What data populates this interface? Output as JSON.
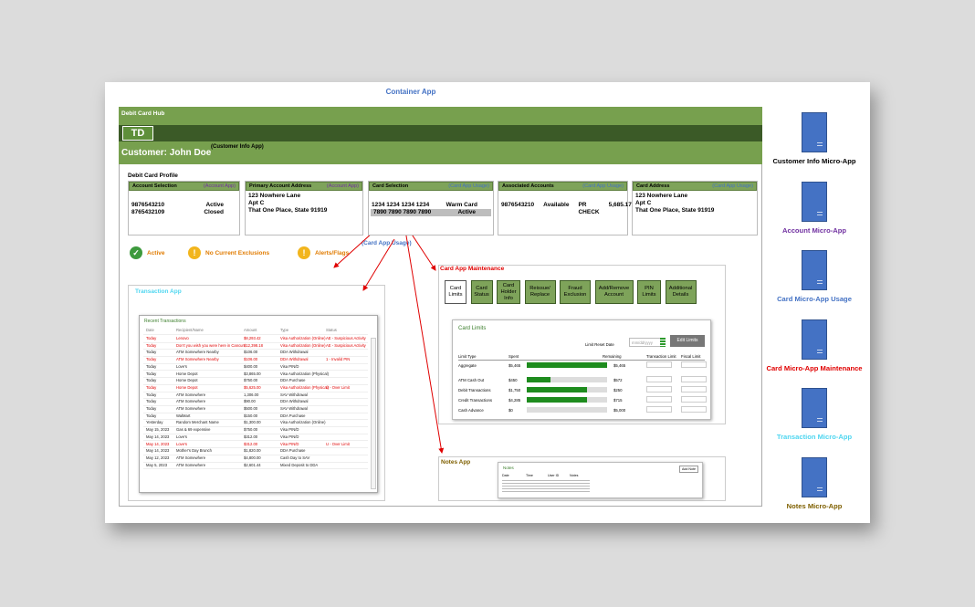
{
  "container_title": "Container App",
  "hub": {
    "title": "Debit Card Hub",
    "logo": "TD",
    "customer": "Customer: John Doe",
    "customer_app": "(Customer Info App)",
    "profile_title": "Debit Card Profile",
    "panels": [
      {
        "title": "Account Selection",
        "app": "(Account App)",
        "app_color": "#7030a0",
        "rows": [
          [
            "9876543210",
            "Active"
          ],
          [
            "8765432109",
            "Closed"
          ]
        ]
      },
      {
        "title": "Primary Account Address",
        "app": "(Account App)",
        "app_color": "#7030a0",
        "rows": [
          [
            "123 Nowhere Lane"
          ],
          [
            "Apt C"
          ],
          [
            "That One Place, State 91919"
          ]
        ]
      },
      {
        "title": "Card Selection",
        "app": "(Card App Usage)",
        "app_color": "#4472c4",
        "rows": [
          [
            "1234 1234 1234 1234",
            "Warm Card"
          ],
          [
            "7890 7890 7890 7890",
            "Active"
          ]
        ],
        "selected_row": 1
      },
      {
        "title": "Associated Accounts",
        "app": "(Card App Usage)",
        "app_color": "#4472c4",
        "rows": [
          [
            "9876543210",
            "Available",
            "PR CHECK",
            "5,685.17"
          ]
        ]
      },
      {
        "title": "Card Address",
        "app": "(Card App Usage)",
        "app_color": "#4472c4",
        "rows": [
          [
            "123 Nowhere Lane"
          ],
          [
            "Apt C"
          ],
          [
            "That One Place, State 91919"
          ]
        ]
      }
    ],
    "status": [
      "Active",
      "No Current Exclusions",
      "Alerts/Flags"
    ],
    "usage_label": "(Card App Usage)"
  },
  "transaction_app": {
    "title": "Transaction App",
    "table_title": "Recent Transactions",
    "headers": [
      "Date",
      "Recipient/Name",
      "Amount",
      "Type",
      "Status"
    ],
    "rows": [
      {
        "cells": [
          "Today",
          "Lenovo",
          "$8,293.42",
          "Visa Authorization (Online)",
          "AE - Suspicious Activity"
        ],
        "flagged": true
      },
      {
        "cells": [
          "Today",
          "Don't you wish you were here in Cancun",
          "$12,398.18",
          "Visa Authorization (Online)",
          "AE - Suspicious Activity"
        ],
        "flagged": true
      },
      {
        "cells": [
          "Today",
          "ATM Somewhere Nearby",
          "$106.00",
          "DDA Withdrawal"
        ],
        "flagged": false
      },
      {
        "cells": [
          "Today",
          "ATM Somewhere Nearby",
          "$106.00",
          "DDA Withdrawal",
          "1 - Invalid PIN"
        ],
        "flagged": true
      },
      {
        "cells": [
          "Today",
          "Love's",
          "$400.00",
          "Visa PIN/D"
        ],
        "flagged": false
      },
      {
        "cells": [
          "Today",
          "Home Depot",
          "$3,865.00",
          "Visa Authorization (Physical)"
        ],
        "flagged": false
      },
      {
        "cells": [
          "Today",
          "Home Depot",
          "$750.00",
          "DDA Purchase"
        ],
        "flagged": false
      },
      {
        "cells": [
          "Today",
          "Home Depot",
          "$5,625.00",
          "Visa Authorization (Physical)",
          "U - Over Limit"
        ],
        "flagged": true
      },
      {
        "cells": [
          "Today",
          "ATM Somewhere",
          "1,306.00",
          "SAV Withdrawal"
        ],
        "flagged": false
      },
      {
        "cells": [
          "Today",
          "ATM Somewhere",
          "$90.00",
          "DDA Withdrawal"
        ],
        "flagged": false
      },
      {
        "cells": [
          "Today",
          "ATM Somewhere",
          "$500.00",
          "SAV Withdrawal"
        ],
        "flagged": false
      },
      {
        "cells": [
          "Today",
          "WalMart",
          "$150.00",
          "DDA Purchase"
        ],
        "flagged": false
      },
      {
        "cells": [
          "Yesterday",
          "Random Merchant Name",
          "$1,300.00",
          "Visa Authorization (Online)"
        ],
        "flagged": false
      },
      {
        "cells": [
          "May 15, 2023",
          "Gas & 69 expensive",
          "$750.00",
          "Visa PIN/D"
        ],
        "flagged": false
      },
      {
        "cells": [
          "May 14, 2023",
          "Love's",
          "$312.00",
          "Visa PIN/D"
        ],
        "flagged": false
      },
      {
        "cells": [
          "May 14, 2023",
          "Love's",
          "$312.00",
          "Visa PIN/D",
          "U - Over Limit"
        ],
        "flagged": true
      },
      {
        "cells": [
          "May 14, 2023",
          "Mother's Day Brunch",
          "$1,820.00",
          "DDA Purchase"
        ],
        "flagged": false
      },
      {
        "cells": [
          "May 12, 2023",
          "ATM Somewhere",
          "$4,800.00",
          "Cash Day to SAV"
        ],
        "flagged": false
      },
      {
        "cells": [
          "May 5, 2023",
          "ATM Somewhere",
          "$2,601.44",
          "Mixed Deposit to DDA"
        ],
        "flagged": false
      }
    ]
  },
  "maintenance": {
    "title": "Card App Maintenance",
    "tabs": [
      "Card Limits",
      "Card Status",
      "Card Holder Info",
      "Reissue/ Replace",
      "Fraud Exclusion",
      "Add/Remove Account",
      "PIN Limits",
      "Additional Details"
    ],
    "active_tab": 0,
    "limits": {
      "title": "Card Limits",
      "reset_label": "Limit Reset Date",
      "date_placeholder": "mm/dd/yyyy",
      "button": "Edit Limits",
      "headers": [
        "Limit Type",
        "Spent",
        "Remaining",
        "Transaction Limit",
        "Fiscal Limit"
      ],
      "rows": [
        {
          "type": "Aggregate",
          "spent": "$5,465",
          "used_pct": 100,
          "remaining": "$5,465"
        },
        {
          "type": "ATM Cash Out",
          "spent": "$450",
          "used_pct": 30,
          "remaining": "$572"
        },
        {
          "type": "Debit Transactions",
          "spent": "$1,750",
          "used_pct": 75,
          "remaining": "$250"
        },
        {
          "type": "Credit Transactions",
          "spent": "$4,285",
          "used_pct": 75,
          "remaining": "$715"
        },
        {
          "type": "Cash Advance",
          "spent": "$0",
          "used_pct": 0,
          "remaining": "$5,000"
        }
      ]
    }
  },
  "notes_app": {
    "title": "Notes App",
    "table_title": "Notes",
    "button": "Add Note",
    "headers": [
      "Date",
      "Time",
      "User ID",
      "Notes"
    ]
  },
  "micro_apps": [
    {
      "label": "Customer Info Micro-App",
      "color": "#000000"
    },
    {
      "label": "Account Micro-App",
      "color": "#7030a0"
    },
    {
      "label": "Card Micro-App Usage",
      "color": "#4472c4"
    },
    {
      "label": "Card Micro-App Maintenance",
      "color": "#e00000"
    },
    {
      "label": "Transaction Micro-App",
      "color": "#4fd6f0"
    },
    {
      "label": "Notes Micro-App",
      "color": "#7f6000"
    }
  ]
}
